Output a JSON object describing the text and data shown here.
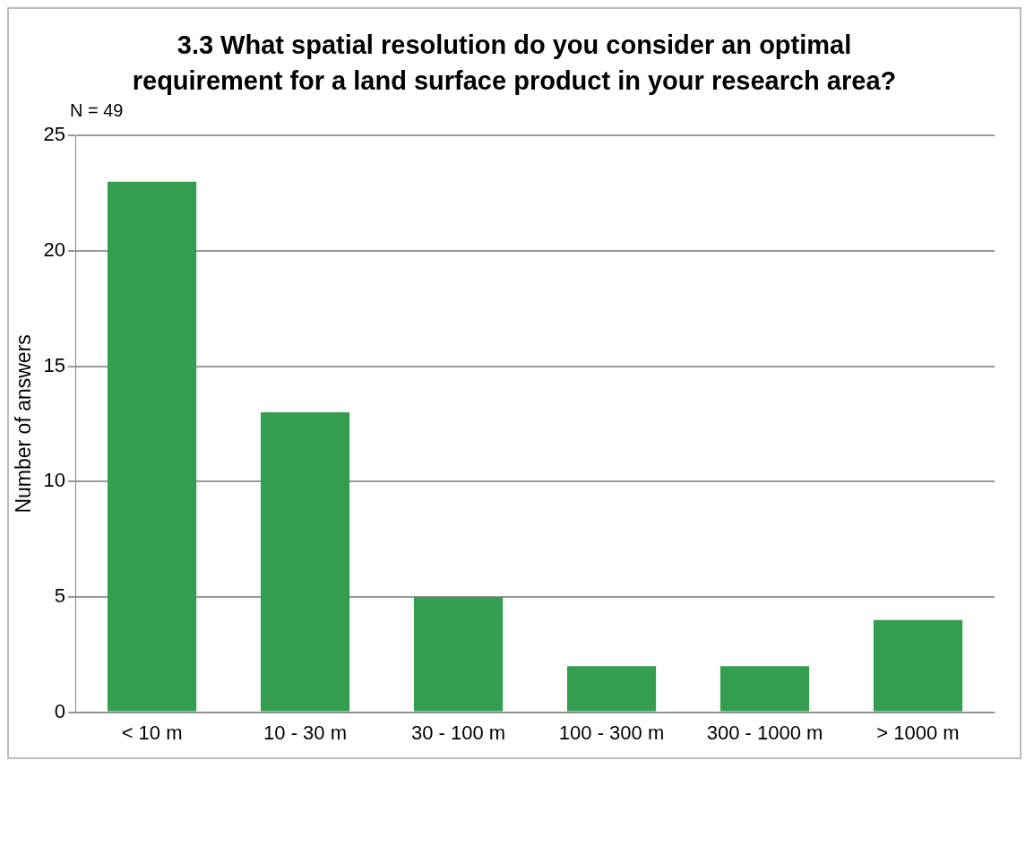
{
  "chart_data": {
    "type": "bar",
    "title": "3.3 What spatial resolution do you consider an optimal requirement for a land surface product in your research area?",
    "ylabel": "Number of answers",
    "annotations": [
      "N = 49"
    ],
    "categories": [
      "< 10 m",
      "10 - 30 m",
      "30 - 100 m",
      "100 - 300 m",
      "300 - 1000 m",
      "> 1000 m"
    ],
    "values": [
      23,
      13,
      5,
      2,
      2,
      4
    ],
    "color": "#339e4f",
    "ylim": [
      0,
      25
    ],
    "yticks": [
      0,
      5,
      10,
      15,
      20,
      25
    ],
    "grid": "y"
  }
}
